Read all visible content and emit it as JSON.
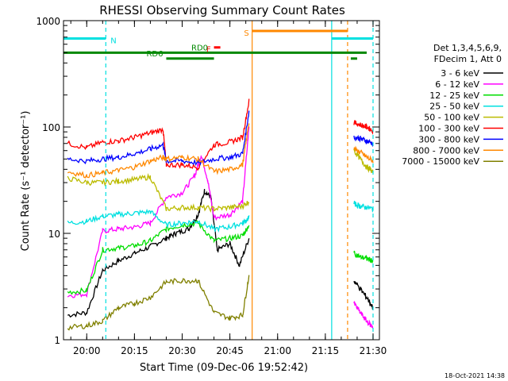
{
  "chart_data": {
    "type": "line",
    "title": "RHESSI Observing Summary Count Rates",
    "xlabel": "Start Time (09-Dec-06 19:52:42)",
    "ylabel": "Count Rate (s⁻¹ detector⁻¹)",
    "y_scale": "log",
    "ylim": [
      1,
      1000
    ],
    "xlim": [
      "19:52:42",
      "21:32"
    ],
    "x_ticks": [
      "20:00",
      "20:15",
      "20:30",
      "20:45",
      "21:00",
      "21:15",
      "21:30"
    ],
    "y_ticks": [
      "1",
      "10",
      "100",
      "1000"
    ],
    "footer": "18-Oct-2021 14:38",
    "legend_header": [
      "Det 1,3,4,5,6,9,",
      "FDecim 1, Att 0"
    ],
    "legend_position": "right",
    "series": [
      {
        "name": "3 - 6 keV",
        "color": "#000000",
        "points": [
          [
            "19:54",
            1.7
          ],
          [
            "20:00",
            1.8
          ],
          [
            "20:05",
            4.5
          ],
          [
            "20:10",
            5.5
          ],
          [
            "20:15",
            6.5
          ],
          [
            "20:20",
            7.5
          ],
          [
            "20:25",
            9.0
          ],
          [
            "20:28",
            10.0
          ],
          [
            "20:32",
            11.0
          ],
          [
            "20:35",
            15.0
          ],
          [
            "20:37",
            25.0
          ],
          [
            "20:39",
            22.0
          ],
          [
            "20:41",
            7.0
          ],
          [
            "20:45",
            8.0
          ],
          [
            "20:48",
            5.0
          ],
          [
            "20:51",
            9.0
          ]
        ]
      },
      {
        "name": "6 - 12 keV",
        "color": "#ff00ff",
        "points": [
          [
            "19:54",
            2.6
          ],
          [
            "20:00",
            2.7
          ],
          [
            "20:05",
            10.5
          ],
          [
            "20:10",
            11.0
          ],
          [
            "20:15",
            11.5
          ],
          [
            "20:20",
            12.5
          ],
          [
            "20:25",
            22.0
          ],
          [
            "20:30",
            24.0
          ],
          [
            "20:34",
            35.0
          ],
          [
            "20:36",
            55.0
          ],
          [
            "20:38",
            32.0
          ],
          [
            "20:40",
            14.0
          ],
          [
            "20:45",
            15.0
          ],
          [
            "20:49",
            20.0
          ],
          [
            "20:51",
            100.0
          ]
        ]
      },
      {
        "name": "12 - 25 keV",
        "color": "#00dd00",
        "points": [
          [
            "19:54",
            2.8
          ],
          [
            "20:00",
            2.9
          ],
          [
            "20:05",
            7.0
          ],
          [
            "20:10",
            7.3
          ],
          [
            "20:15",
            7.6
          ],
          [
            "20:20",
            8.5
          ],
          [
            "20:25",
            11.0
          ],
          [
            "20:30",
            12.0
          ],
          [
            "20:35",
            12.5
          ],
          [
            "20:40",
            8.5
          ],
          [
            "20:45",
            9.0
          ],
          [
            "20:49",
            9.5
          ],
          [
            "20:51",
            12.0
          ]
        ]
      },
      {
        "name": "25 - 50 keV",
        "color": "#00e0e0",
        "points": [
          [
            "19:54",
            12.5
          ],
          [
            "20:00",
            13.0
          ],
          [
            "20:05",
            14.5
          ],
          [
            "20:10",
            15.0
          ],
          [
            "20:15",
            15.5
          ],
          [
            "20:20",
            16.0
          ],
          [
            "20:25",
            12.0
          ],
          [
            "20:30",
            12.5
          ],
          [
            "20:35",
            13.0
          ],
          [
            "20:40",
            11.0
          ],
          [
            "20:45",
            11.5
          ],
          [
            "20:49",
            12.5
          ],
          [
            "20:51",
            14.0
          ]
        ]
      },
      {
        "name": "50 - 100 keV",
        "color": "#bbbb00",
        "points": [
          [
            "19:54",
            33.0
          ],
          [
            "20:00",
            30.0
          ],
          [
            "20:05",
            30.0
          ],
          [
            "20:10",
            31.0
          ],
          [
            "20:15",
            32.0
          ],
          [
            "20:20",
            34.0
          ],
          [
            "20:25",
            17.0
          ],
          [
            "20:30",
            17.5
          ],
          [
            "20:35",
            17.5
          ],
          [
            "20:40",
            17.0
          ],
          [
            "20:45",
            17.5
          ],
          [
            "20:49",
            18.0
          ],
          [
            "20:51",
            20.0
          ]
        ]
      },
      {
        "name": "100 - 300 keV",
        "color": "#ff0000",
        "points": [
          [
            "19:54",
            70.0
          ],
          [
            "20:00",
            64.0
          ],
          [
            "20:05",
            72.0
          ],
          [
            "20:10",
            74.0
          ],
          [
            "20:15",
            80.0
          ],
          [
            "20:20",
            88.0
          ],
          [
            "20:24",
            95.0
          ],
          [
            "20:25",
            44.0
          ],
          [
            "20:30",
            44.0
          ],
          [
            "20:35",
            42.0
          ],
          [
            "20:40",
            68.0
          ],
          [
            "20:45",
            72.0
          ],
          [
            "20:49",
            80.0
          ],
          [
            "20:51",
            175.0
          ]
        ]
      },
      {
        "name": "300 - 800 keV",
        "color": "#0000ff",
        "points": [
          [
            "19:54",
            50.0
          ],
          [
            "20:00",
            48.0
          ],
          [
            "20:05",
            50.0
          ],
          [
            "20:10",
            52.0
          ],
          [
            "20:15",
            56.0
          ],
          [
            "20:20",
            62.0
          ],
          [
            "20:24",
            68.0
          ],
          [
            "20:25",
            48.0
          ],
          [
            "20:30",
            48.0
          ],
          [
            "20:35",
            46.0
          ],
          [
            "20:40",
            50.0
          ],
          [
            "20:45",
            52.0
          ],
          [
            "20:49",
            56.0
          ],
          [
            "20:51",
            140.0
          ]
        ]
      },
      {
        "name": "800 - 7000 keV",
        "color": "#ff8800",
        "points": [
          [
            "19:54",
            38.0
          ],
          [
            "20:00",
            35.0
          ],
          [
            "20:05",
            37.0
          ],
          [
            "20:10",
            39.0
          ],
          [
            "20:15",
            42.0
          ],
          [
            "20:20",
            48.0
          ],
          [
            "20:24",
            52.0
          ],
          [
            "20:25",
            50.0
          ],
          [
            "20:30",
            52.0
          ],
          [
            "20:35",
            50.0
          ],
          [
            "20:40",
            38.0
          ],
          [
            "20:45",
            40.0
          ],
          [
            "20:49",
            44.0
          ],
          [
            "20:51",
            110.0
          ]
        ]
      },
      {
        "name": "7000 - 15000 keV",
        "color": "#808000",
        "points": [
          [
            "19:54",
            1.3
          ],
          [
            "20:00",
            1.35
          ],
          [
            "20:05",
            1.5
          ],
          [
            "20:10",
            2.0
          ],
          [
            "20:15",
            2.2
          ],
          [
            "20:20",
            2.5
          ],
          [
            "20:25",
            3.5
          ],
          [
            "20:30",
            3.6
          ],
          [
            "20:35",
            3.6
          ],
          [
            "20:40",
            1.8
          ],
          [
            "20:45",
            1.6
          ],
          [
            "20:49",
            1.7
          ],
          [
            "20:51",
            4.0
          ]
        ]
      }
    ],
    "post_gap_series": [
      {
        "name": "100 - 300 keV",
        "color": "#ff0000",
        "points": [
          [
            "21:24",
            110.0
          ],
          [
            "21:26",
            105.0
          ],
          [
            "21:28",
            100.0
          ],
          [
            "21:30",
            92.0
          ]
        ]
      },
      {
        "name": "300 - 800 keV",
        "color": "#0000ff",
        "points": [
          [
            "21:24",
            80.0
          ],
          [
            "21:26",
            78.0
          ],
          [
            "21:28",
            74.0
          ],
          [
            "21:30",
            70.0
          ]
        ]
      },
      {
        "name": "800 - 7000 keV",
        "color": "#ff8800",
        "points": [
          [
            "21:24",
            62.0
          ],
          [
            "21:26",
            58.0
          ],
          [
            "21:28",
            52.0
          ],
          [
            "21:30",
            48.0
          ]
        ]
      },
      {
        "name": "50 - 100 keV",
        "color": "#bbbb00",
        "points": [
          [
            "21:24",
            60.0
          ],
          [
            "21:26",
            50.0
          ],
          [
            "21:28",
            42.0
          ],
          [
            "21:30",
            38.0
          ]
        ]
      },
      {
        "name": "25 - 50 keV",
        "color": "#00e0e0",
        "points": [
          [
            "21:24",
            19.0
          ],
          [
            "21:26",
            18.0
          ],
          [
            "21:28",
            17.5
          ],
          [
            "21:30",
            17.0
          ]
        ]
      },
      {
        "name": "12 - 25 keV",
        "color": "#00dd00",
        "points": [
          [
            "21:24",
            6.5
          ],
          [
            "21:26",
            6.0
          ],
          [
            "21:28",
            5.8
          ],
          [
            "21:30",
            5.5
          ]
        ]
      },
      {
        "name": "6 - 12 keV",
        "color": "#ff00ff",
        "points": [
          [
            "21:24",
            2.2
          ],
          [
            "21:26",
            1.8
          ],
          [
            "21:28",
            1.5
          ],
          [
            "21:30",
            1.3
          ]
        ]
      },
      {
        "name": "3 - 6 keV",
        "color": "#000000",
        "points": [
          [
            "21:24",
            3.6
          ],
          [
            "21:26",
            3.0
          ],
          [
            "21:28",
            2.5
          ],
          [
            "21:30",
            2.0
          ]
        ]
      }
    ],
    "status_bars": [
      {
        "label": "N",
        "color": "#00e0e0",
        "segments": [
          [
            "19:52:42",
            "20:06"
          ],
          [
            "21:17",
            "21:30"
          ]
        ],
        "level": 680
      },
      {
        "label": "S",
        "color": "#ff8800",
        "segments": [
          [
            "20:52",
            "21:22"
          ]
        ],
        "level": 800
      },
      {
        "label": "F",
        "color": "#ff0000",
        "segments": [
          [
            "20:40",
            "20:42"
          ]
        ],
        "level": 560
      },
      {
        "label": "RD0",
        "color": "#008800",
        "segments": [
          [
            "19:52:42",
            "21:28"
          ]
        ],
        "level": 500
      },
      {
        "label": "RD6",
        "color": "#008800",
        "segments": [
          [
            "20:25",
            "20:40"
          ],
          [
            "21:23",
            "21:25"
          ]
        ],
        "level": 440
      }
    ],
    "boundary_lines": [
      {
        "color": "#00e0e0",
        "style": "dashed",
        "x": "20:06"
      },
      {
        "color": "#ff8800",
        "style": "solid",
        "x": "20:52"
      },
      {
        "color": "#00e0e0",
        "style": "solid",
        "x": "21:17"
      },
      {
        "color": "#ff8800",
        "style": "dashed",
        "x": "21:22"
      },
      {
        "color": "#00e0e0",
        "style": "dashed",
        "x": "21:30"
      }
    ]
  }
}
